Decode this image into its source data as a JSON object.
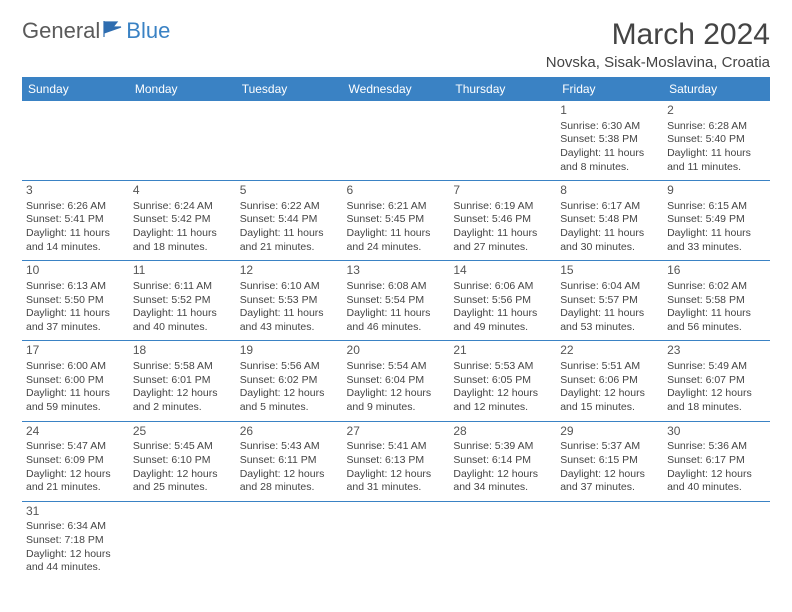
{
  "logo": {
    "part1": "General",
    "part2": "Blue"
  },
  "title": "March 2024",
  "location": "Novska, Sisak-Moslavina, Croatia",
  "day_headers": [
    "Sunday",
    "Monday",
    "Tuesday",
    "Wednesday",
    "Thursday",
    "Friday",
    "Saturday"
  ],
  "colors": {
    "header_bg": "#3a82c4",
    "header_text": "#ffffff",
    "rule": "#3a82c4"
  },
  "weeks": [
    [
      null,
      null,
      null,
      null,
      null,
      {
        "n": "1",
        "sr": "Sunrise: 6:30 AM",
        "ss": "Sunset: 5:38 PM",
        "dl": "Daylight: 11 hours and 8 minutes."
      },
      {
        "n": "2",
        "sr": "Sunrise: 6:28 AM",
        "ss": "Sunset: 5:40 PM",
        "dl": "Daylight: 11 hours and 11 minutes."
      }
    ],
    [
      {
        "n": "3",
        "sr": "Sunrise: 6:26 AM",
        "ss": "Sunset: 5:41 PM",
        "dl": "Daylight: 11 hours and 14 minutes."
      },
      {
        "n": "4",
        "sr": "Sunrise: 6:24 AM",
        "ss": "Sunset: 5:42 PM",
        "dl": "Daylight: 11 hours and 18 minutes."
      },
      {
        "n": "5",
        "sr": "Sunrise: 6:22 AM",
        "ss": "Sunset: 5:44 PM",
        "dl": "Daylight: 11 hours and 21 minutes."
      },
      {
        "n": "6",
        "sr": "Sunrise: 6:21 AM",
        "ss": "Sunset: 5:45 PM",
        "dl": "Daylight: 11 hours and 24 minutes."
      },
      {
        "n": "7",
        "sr": "Sunrise: 6:19 AM",
        "ss": "Sunset: 5:46 PM",
        "dl": "Daylight: 11 hours and 27 minutes."
      },
      {
        "n": "8",
        "sr": "Sunrise: 6:17 AM",
        "ss": "Sunset: 5:48 PM",
        "dl": "Daylight: 11 hours and 30 minutes."
      },
      {
        "n": "9",
        "sr": "Sunrise: 6:15 AM",
        "ss": "Sunset: 5:49 PM",
        "dl": "Daylight: 11 hours and 33 minutes."
      }
    ],
    [
      {
        "n": "10",
        "sr": "Sunrise: 6:13 AM",
        "ss": "Sunset: 5:50 PM",
        "dl": "Daylight: 11 hours and 37 minutes."
      },
      {
        "n": "11",
        "sr": "Sunrise: 6:11 AM",
        "ss": "Sunset: 5:52 PM",
        "dl": "Daylight: 11 hours and 40 minutes."
      },
      {
        "n": "12",
        "sr": "Sunrise: 6:10 AM",
        "ss": "Sunset: 5:53 PM",
        "dl": "Daylight: 11 hours and 43 minutes."
      },
      {
        "n": "13",
        "sr": "Sunrise: 6:08 AM",
        "ss": "Sunset: 5:54 PM",
        "dl": "Daylight: 11 hours and 46 minutes."
      },
      {
        "n": "14",
        "sr": "Sunrise: 6:06 AM",
        "ss": "Sunset: 5:56 PM",
        "dl": "Daylight: 11 hours and 49 minutes."
      },
      {
        "n": "15",
        "sr": "Sunrise: 6:04 AM",
        "ss": "Sunset: 5:57 PM",
        "dl": "Daylight: 11 hours and 53 minutes."
      },
      {
        "n": "16",
        "sr": "Sunrise: 6:02 AM",
        "ss": "Sunset: 5:58 PM",
        "dl": "Daylight: 11 hours and 56 minutes."
      }
    ],
    [
      {
        "n": "17",
        "sr": "Sunrise: 6:00 AM",
        "ss": "Sunset: 6:00 PM",
        "dl": "Daylight: 11 hours and 59 minutes."
      },
      {
        "n": "18",
        "sr": "Sunrise: 5:58 AM",
        "ss": "Sunset: 6:01 PM",
        "dl": "Daylight: 12 hours and 2 minutes."
      },
      {
        "n": "19",
        "sr": "Sunrise: 5:56 AM",
        "ss": "Sunset: 6:02 PM",
        "dl": "Daylight: 12 hours and 5 minutes."
      },
      {
        "n": "20",
        "sr": "Sunrise: 5:54 AM",
        "ss": "Sunset: 6:04 PM",
        "dl": "Daylight: 12 hours and 9 minutes."
      },
      {
        "n": "21",
        "sr": "Sunrise: 5:53 AM",
        "ss": "Sunset: 6:05 PM",
        "dl": "Daylight: 12 hours and 12 minutes."
      },
      {
        "n": "22",
        "sr": "Sunrise: 5:51 AM",
        "ss": "Sunset: 6:06 PM",
        "dl": "Daylight: 12 hours and 15 minutes."
      },
      {
        "n": "23",
        "sr": "Sunrise: 5:49 AM",
        "ss": "Sunset: 6:07 PM",
        "dl": "Daylight: 12 hours and 18 minutes."
      }
    ],
    [
      {
        "n": "24",
        "sr": "Sunrise: 5:47 AM",
        "ss": "Sunset: 6:09 PM",
        "dl": "Daylight: 12 hours and 21 minutes."
      },
      {
        "n": "25",
        "sr": "Sunrise: 5:45 AM",
        "ss": "Sunset: 6:10 PM",
        "dl": "Daylight: 12 hours and 25 minutes."
      },
      {
        "n": "26",
        "sr": "Sunrise: 5:43 AM",
        "ss": "Sunset: 6:11 PM",
        "dl": "Daylight: 12 hours and 28 minutes."
      },
      {
        "n": "27",
        "sr": "Sunrise: 5:41 AM",
        "ss": "Sunset: 6:13 PM",
        "dl": "Daylight: 12 hours and 31 minutes."
      },
      {
        "n": "28",
        "sr": "Sunrise: 5:39 AM",
        "ss": "Sunset: 6:14 PM",
        "dl": "Daylight: 12 hours and 34 minutes."
      },
      {
        "n": "29",
        "sr": "Sunrise: 5:37 AM",
        "ss": "Sunset: 6:15 PM",
        "dl": "Daylight: 12 hours and 37 minutes."
      },
      {
        "n": "30",
        "sr": "Sunrise: 5:36 AM",
        "ss": "Sunset: 6:17 PM",
        "dl": "Daylight: 12 hours and 40 minutes."
      }
    ],
    [
      {
        "n": "31",
        "sr": "Sunrise: 6:34 AM",
        "ss": "Sunset: 7:18 PM",
        "dl": "Daylight: 12 hours and 44 minutes."
      },
      null,
      null,
      null,
      null,
      null,
      null
    ]
  ]
}
